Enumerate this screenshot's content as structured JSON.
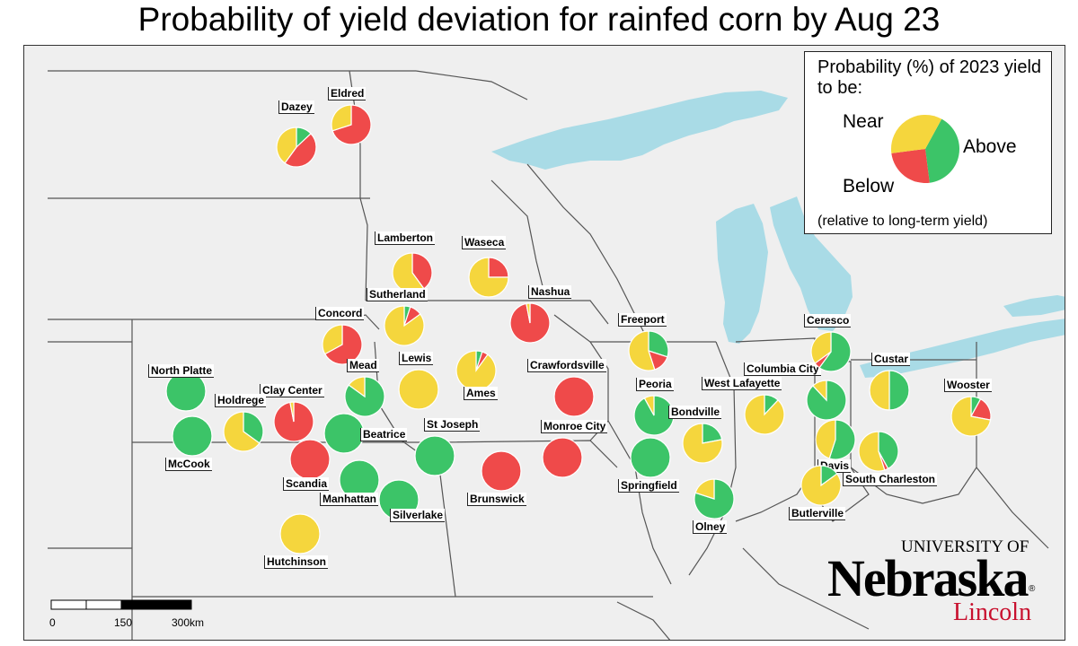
{
  "title": "Probability of yield deviation for rainfed corn by Aug 23",
  "colors": {
    "above": "#3cc468",
    "near": "#f5d63d",
    "below": "#ef4a4a",
    "lake": "#a9dbe6",
    "land": "#efefef",
    "border": "#555555"
  },
  "legend": {
    "title": "Probability (%) of 2023 yield to be:",
    "near": "Near",
    "above": "Above",
    "below": "Below",
    "note": "(relative to long-term yield)",
    "example_slices": {
      "above": 40,
      "near": 35,
      "below": 25
    }
  },
  "sites": [
    {
      "name": "Dazey",
      "above": 13,
      "near": 40,
      "below": 47
    },
    {
      "name": "Eldred",
      "above": 0,
      "near": 30,
      "below": 70
    },
    {
      "name": "Lamberton",
      "above": 0,
      "near": 60,
      "below": 40
    },
    {
      "name": "Waseca",
      "above": 0,
      "near": 75,
      "below": 25
    },
    {
      "name": "Sutherland",
      "above": 5,
      "near": 85,
      "below": 10
    },
    {
      "name": "Nashua",
      "above": 0,
      "near": 3,
      "below": 97
    },
    {
      "name": "Concord",
      "above": 0,
      "near": 33,
      "below": 67
    },
    {
      "name": "Lewis",
      "above": 0,
      "near": 100,
      "below": 0
    },
    {
      "name": "Ames",
      "above": 5,
      "near": 90,
      "below": 5
    },
    {
      "name": "Crawfordsville",
      "above": 0,
      "near": 0,
      "below": 100
    },
    {
      "name": "North Platte",
      "above": 100,
      "near": 0,
      "below": 0
    },
    {
      "name": "Mead",
      "above": 85,
      "near": 15,
      "below": 0
    },
    {
      "name": "Clay Center",
      "above": 0,
      "near": 3,
      "below": 97
    },
    {
      "name": "Holdrege",
      "above": 35,
      "near": 65,
      "below": 0
    },
    {
      "name": "McCook",
      "above": 100,
      "near": 0,
      "below": 0
    },
    {
      "name": "Beatrice",
      "above": 100,
      "near": 0,
      "below": 0
    },
    {
      "name": "Scandia",
      "above": 0,
      "near": 0,
      "below": 100
    },
    {
      "name": "St Joseph",
      "above": 100,
      "near": 0,
      "below": 0
    },
    {
      "name": "Manhattan",
      "above": 100,
      "near": 0,
      "below": 0
    },
    {
      "name": "Silverlake",
      "above": 100,
      "near": 0,
      "below": 0
    },
    {
      "name": "Hutchinson",
      "above": 0,
      "near": 100,
      "below": 0
    },
    {
      "name": "Brunswick",
      "above": 0,
      "near": 0,
      "below": 100
    },
    {
      "name": "Monroe City",
      "above": 0,
      "near": 0,
      "below": 100
    },
    {
      "name": "Freeport",
      "above": 30,
      "near": 55,
      "below": 15
    },
    {
      "name": "Peoria",
      "above": 92,
      "near": 8,
      "below": 0
    },
    {
      "name": "Springfield",
      "above": 100,
      "near": 0,
      "below": 0
    },
    {
      "name": "Bondville",
      "above": 22,
      "near": 78,
      "below": 0
    },
    {
      "name": "West Lafayette",
      "above": 12,
      "near": 88,
      "below": 0
    },
    {
      "name": "Olney",
      "above": 80,
      "near": 20,
      "below": 0
    },
    {
      "name": "Columbia City",
      "above": 88,
      "near": 12,
      "below": 0
    },
    {
      "name": "Ceresco",
      "above": 60,
      "near": 35,
      "below": 5
    },
    {
      "name": "Custar",
      "above": 50,
      "near": 50,
      "below": 0
    },
    {
      "name": "Wooster",
      "above": 8,
      "near": 72,
      "below": 20
    },
    {
      "name": "Davis",
      "above": 55,
      "near": 45,
      "below": 0
    },
    {
      "name": "South Charleston",
      "above": 42,
      "near": 55,
      "below": 3
    },
    {
      "name": "Butlerville",
      "above": 15,
      "near": 85,
      "below": 0
    }
  ],
  "scale": {
    "labels": [
      "0",
      "150",
      "300km"
    ]
  },
  "logo": {
    "university": "UNIVERSITY OF",
    "name": "Nebraska",
    "campus": "Lincoln",
    "mark": "®"
  }
}
